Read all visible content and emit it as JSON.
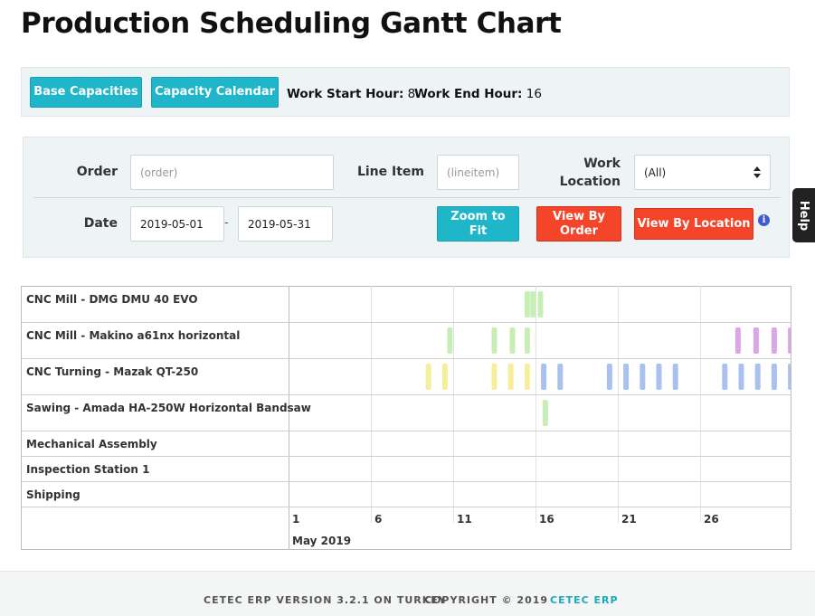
{
  "header": {
    "title": "Production Scheduling Gantt Chart"
  },
  "toolbar": {
    "base_capacities": "Base Capacities",
    "capacity_calendar": "Capacity Calendar",
    "work_start_label": "Work Start Hour:",
    "work_start_value": "8",
    "work_end_label": "Work End Hour:",
    "work_end_value": "16"
  },
  "filters": {
    "order_label": "Order",
    "order_placeholder": "(order)",
    "line_item_label": "Line Item",
    "line_item_placeholder": "(lineitem)",
    "work_location_label_1": "Work",
    "work_location_label_2": "Location",
    "work_location_value": "(All)",
    "date_label": "Date",
    "date_from": "2019-05-01",
    "date_separator": "-",
    "date_to": "2019-05-31",
    "zoom_to_fit_1": "Zoom to",
    "zoom_to_fit_2": "Fit",
    "view_by_order_1": "View By",
    "view_by_order_2": "Order",
    "view_by_location": "View By Location"
  },
  "help": {
    "label": "Help"
  },
  "chart_data": {
    "type": "gantt",
    "month_label": "May 2019",
    "x_ticks": [
      "1",
      "6",
      "11",
      "16",
      "21",
      "26"
    ],
    "resources": [
      {
        "name": "CNC Mill - DMG DMU 40 EVO",
        "tasks": [
          {
            "day": 15.5,
            "color": "#c6efb8"
          },
          {
            "day": 15.85,
            "color": "#c6efb8"
          },
          {
            "day": 16.3,
            "color": "#c6efb8"
          }
        ]
      },
      {
        "name": "CNC Mill - Makino a61nx horizontal",
        "tasks": [
          {
            "day": 10.8,
            "color": "#c6efb8"
          },
          {
            "day": 13.5,
            "color": "#c6efb8"
          },
          {
            "day": 14.6,
            "color": "#c6efb8"
          },
          {
            "day": 15.5,
            "color": "#c6efb8"
          },
          {
            "day": 28.3,
            "color": "#d9a7e6"
          },
          {
            "day": 29.4,
            "color": "#d9a7e6"
          },
          {
            "day": 30.5,
            "color": "#d9a7e6"
          },
          {
            "day": 31.5,
            "color": "#d9a7e6"
          }
        ]
      },
      {
        "name": "CNC Turning - Mazak QT-250",
        "tasks": [
          {
            "day": 9.5,
            "color": "#f7ee9c"
          },
          {
            "day": 10.5,
            "color": "#f7ee9c"
          },
          {
            "day": 13.5,
            "color": "#f7ee9c"
          },
          {
            "day": 14.5,
            "color": "#f7ee9c"
          },
          {
            "day": 15.5,
            "color": "#f7ee9c"
          },
          {
            "day": 16.5,
            "color": "#a9c1f0"
          },
          {
            "day": 17.5,
            "color": "#a9c1f0"
          },
          {
            "day": 20.5,
            "color": "#a9c1f0"
          },
          {
            "day": 21.5,
            "color": "#a9c1f0"
          },
          {
            "day": 22.5,
            "color": "#a9c1f0"
          },
          {
            "day": 23.5,
            "color": "#a9c1f0"
          },
          {
            "day": 24.5,
            "color": "#a9c1f0"
          },
          {
            "day": 27.5,
            "color": "#a9c1f0"
          },
          {
            "day": 28.5,
            "color": "#a9c1f0"
          },
          {
            "day": 29.5,
            "color": "#a9c1f0"
          },
          {
            "day": 30.5,
            "color": "#a9c1f0"
          },
          {
            "day": 31.5,
            "color": "#a9c1f0"
          }
        ]
      },
      {
        "name": "Sawing - Amada HA-250W Horizontal Bandsaw",
        "tasks": [
          {
            "day": 16.6,
            "color": "#c6efb8"
          }
        ]
      },
      {
        "name": "Mechanical Assembly",
        "tasks": []
      },
      {
        "name": "Inspection Station 1",
        "tasks": []
      },
      {
        "name": "Shipping",
        "tasks": []
      }
    ]
  },
  "footer": {
    "version": "CETEC ERP VERSION 3.2.1 ON TURKEY",
    "copyright": "COPYRIGHT © 2019",
    "link": "CETEC ERP"
  }
}
